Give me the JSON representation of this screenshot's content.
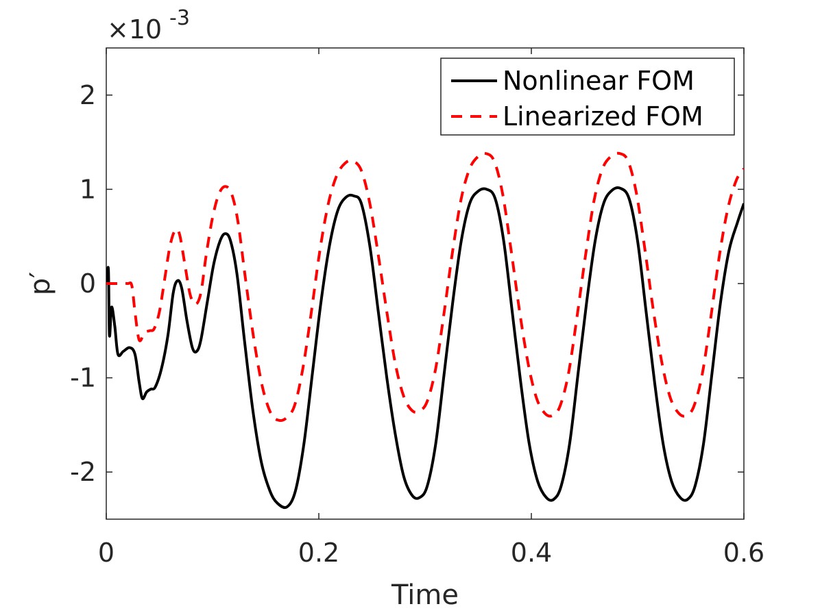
{
  "chart_data": {
    "type": "line",
    "title": "",
    "xlabel": "Time",
    "ylabel": "p′",
    "xlim": [
      0,
      0.6
    ],
    "ylim": [
      -2.5,
      2.5
    ],
    "y_scale_label": {
      "base": "×10",
      "exponent": "-3"
    },
    "x_ticks": [
      0,
      0.2,
      0.4,
      0.6
    ],
    "x_tick_labels": [
      "0",
      "0.2",
      "0.4",
      "0.6"
    ],
    "y_ticks": [
      -2,
      -1,
      0,
      1,
      2
    ],
    "y_tick_labels": [
      "-2",
      "-1",
      "0",
      "1",
      "2"
    ],
    "grid": false,
    "legend_position": "top-right",
    "series": [
      {
        "name": "Nonlinear FOM",
        "color": "#000000",
        "style": "solid",
        "points": [
          [
            0,
            0
          ],
          [
            0.002,
            0.15
          ],
          [
            0.003,
            -0.55
          ],
          [
            0.005,
            -0.25
          ],
          [
            0.008,
            -0.45
          ],
          [
            0.011,
            -0.75
          ],
          [
            0.016,
            -0.72
          ],
          [
            0.022,
            -0.68
          ],
          [
            0.027,
            -0.75
          ],
          [
            0.031,
            -1.05
          ],
          [
            0.034,
            -1.22
          ],
          [
            0.038,
            -1.15
          ],
          [
            0.042,
            -1.12
          ],
          [
            0.046,
            -1.1
          ],
          [
            0.052,
            -0.9
          ],
          [
            0.058,
            -0.55
          ],
          [
            0.063,
            -0.1
          ],
          [
            0.067,
            0.03
          ],
          [
            0.071,
            -0.05
          ],
          [
            0.076,
            -0.4
          ],
          [
            0.081,
            -0.68
          ],
          [
            0.085,
            -0.72
          ],
          [
            0.089,
            -0.6
          ],
          [
            0.095,
            -0.2
          ],
          [
            0.101,
            0.2
          ],
          [
            0.107,
            0.45
          ],
          [
            0.112,
            0.53
          ],
          [
            0.117,
            0.45
          ],
          [
            0.123,
            0.1
          ],
          [
            0.13,
            -0.6
          ],
          [
            0.138,
            -1.35
          ],
          [
            0.146,
            -1.9
          ],
          [
            0.154,
            -2.2
          ],
          [
            0.161,
            -2.33
          ],
          [
            0.17,
            -2.37
          ],
          [
            0.178,
            -2.2
          ],
          [
            0.186,
            -1.7
          ],
          [
            0.194,
            -0.95
          ],
          [
            0.202,
            -0.2
          ],
          [
            0.21,
            0.4
          ],
          [
            0.218,
            0.78
          ],
          [
            0.226,
            0.92
          ],
          [
            0.233,
            0.93
          ],
          [
            0.24,
            0.85
          ],
          [
            0.248,
            0.4
          ],
          [
            0.256,
            -0.3
          ],
          [
            0.264,
            -1.0
          ],
          [
            0.272,
            -1.6
          ],
          [
            0.28,
            -2.05
          ],
          [
            0.288,
            -2.25
          ],
          [
            0.295,
            -2.27
          ],
          [
            0.302,
            -2.15
          ],
          [
            0.31,
            -1.7
          ],
          [
            0.318,
            -0.95
          ],
          [
            0.326,
            -0.2
          ],
          [
            0.334,
            0.45
          ],
          [
            0.342,
            0.85
          ],
          [
            0.35,
            0.98
          ],
          [
            0.358,
            1.0
          ],
          [
            0.366,
            0.9
          ],
          [
            0.374,
            0.45
          ],
          [
            0.382,
            -0.3
          ],
          [
            0.39,
            -1.05
          ],
          [
            0.398,
            -1.7
          ],
          [
            0.406,
            -2.1
          ],
          [
            0.414,
            -2.27
          ],
          [
            0.421,
            -2.29
          ],
          [
            0.428,
            -2.15
          ],
          [
            0.436,
            -1.7
          ],
          [
            0.444,
            -0.95
          ],
          [
            0.452,
            -0.2
          ],
          [
            0.46,
            0.45
          ],
          [
            0.468,
            0.85
          ],
          [
            0.476,
            0.99
          ],
          [
            0.484,
            1.01
          ],
          [
            0.492,
            0.9
          ],
          [
            0.5,
            0.45
          ],
          [
            0.508,
            -0.3
          ],
          [
            0.516,
            -1.05
          ],
          [
            0.524,
            -1.7
          ],
          [
            0.532,
            -2.1
          ],
          [
            0.54,
            -2.27
          ],
          [
            0.547,
            -2.29
          ],
          [
            0.554,
            -2.15
          ],
          [
            0.562,
            -1.7
          ],
          [
            0.57,
            -0.95
          ],
          [
            0.578,
            -0.2
          ],
          [
            0.586,
            0.35
          ],
          [
            0.594,
            0.65
          ],
          [
            0.6,
            0.85
          ]
        ]
      },
      {
        "name": "Linearized FOM",
        "color": "#ff0000",
        "style": "dashed",
        "points": [
          [
            0,
            0
          ],
          [
            0.01,
            0
          ],
          [
            0.02,
            0
          ],
          [
            0.024,
            -0.02
          ],
          [
            0.027,
            -0.3
          ],
          [
            0.031,
            -0.6
          ],
          [
            0.036,
            -0.52
          ],
          [
            0.041,
            -0.5
          ],
          [
            0.045,
            -0.48
          ],
          [
            0.05,
            -0.3
          ],
          [
            0.055,
            0.05
          ],
          [
            0.06,
            0.4
          ],
          [
            0.065,
            0.57
          ],
          [
            0.069,
            0.52
          ],
          [
            0.074,
            0.2
          ],
          [
            0.079,
            -0.12
          ],
          [
            0.084,
            -0.22
          ],
          [
            0.089,
            -0.1
          ],
          [
            0.094,
            0.3
          ],
          [
            0.1,
            0.7
          ],
          [
            0.106,
            0.95
          ],
          [
            0.112,
            1.03
          ],
          [
            0.118,
            0.95
          ],
          [
            0.124,
            0.65
          ],
          [
            0.131,
            0.05
          ],
          [
            0.139,
            -0.6
          ],
          [
            0.147,
            -1.1
          ],
          [
            0.155,
            -1.38
          ],
          [
            0.162,
            -1.45
          ],
          [
            0.169,
            -1.43
          ],
          [
            0.177,
            -1.3
          ],
          [
            0.185,
            -0.9
          ],
          [
            0.193,
            -0.3
          ],
          [
            0.201,
            0.35
          ],
          [
            0.209,
            0.85
          ],
          [
            0.217,
            1.15
          ],
          [
            0.225,
            1.28
          ],
          [
            0.232,
            1.3
          ],
          [
            0.24,
            1.2
          ],
          [
            0.248,
            0.85
          ],
          [
            0.256,
            0.3
          ],
          [
            0.264,
            -0.3
          ],
          [
            0.272,
            -0.85
          ],
          [
            0.28,
            -1.2
          ],
          [
            0.288,
            -1.35
          ],
          [
            0.295,
            -1.35
          ],
          [
            0.302,
            -1.25
          ],
          [
            0.31,
            -0.9
          ],
          [
            0.318,
            -0.3
          ],
          [
            0.326,
            0.35
          ],
          [
            0.334,
            0.9
          ],
          [
            0.342,
            1.22
          ],
          [
            0.35,
            1.35
          ],
          [
            0.357,
            1.38
          ],
          [
            0.365,
            1.3
          ],
          [
            0.373,
            0.95
          ],
          [
            0.381,
            0.35
          ],
          [
            0.389,
            -0.3
          ],
          [
            0.397,
            -0.85
          ],
          [
            0.405,
            -1.22
          ],
          [
            0.413,
            -1.38
          ],
          [
            0.42,
            -1.4
          ],
          [
            0.427,
            -1.3
          ],
          [
            0.435,
            -0.95
          ],
          [
            0.443,
            -0.35
          ],
          [
            0.451,
            0.3
          ],
          [
            0.459,
            0.88
          ],
          [
            0.467,
            1.22
          ],
          [
            0.475,
            1.35
          ],
          [
            0.483,
            1.38
          ],
          [
            0.491,
            1.3
          ],
          [
            0.499,
            0.95
          ],
          [
            0.507,
            0.35
          ],
          [
            0.515,
            -0.3
          ],
          [
            0.523,
            -0.85
          ],
          [
            0.531,
            -1.22
          ],
          [
            0.539,
            -1.38
          ],
          [
            0.546,
            -1.4
          ],
          [
            0.553,
            -1.3
          ],
          [
            0.561,
            -0.95
          ],
          [
            0.569,
            -0.35
          ],
          [
            0.577,
            0.3
          ],
          [
            0.585,
            0.8
          ],
          [
            0.593,
            1.1
          ],
          [
            0.6,
            1.22
          ]
        ]
      }
    ]
  }
}
